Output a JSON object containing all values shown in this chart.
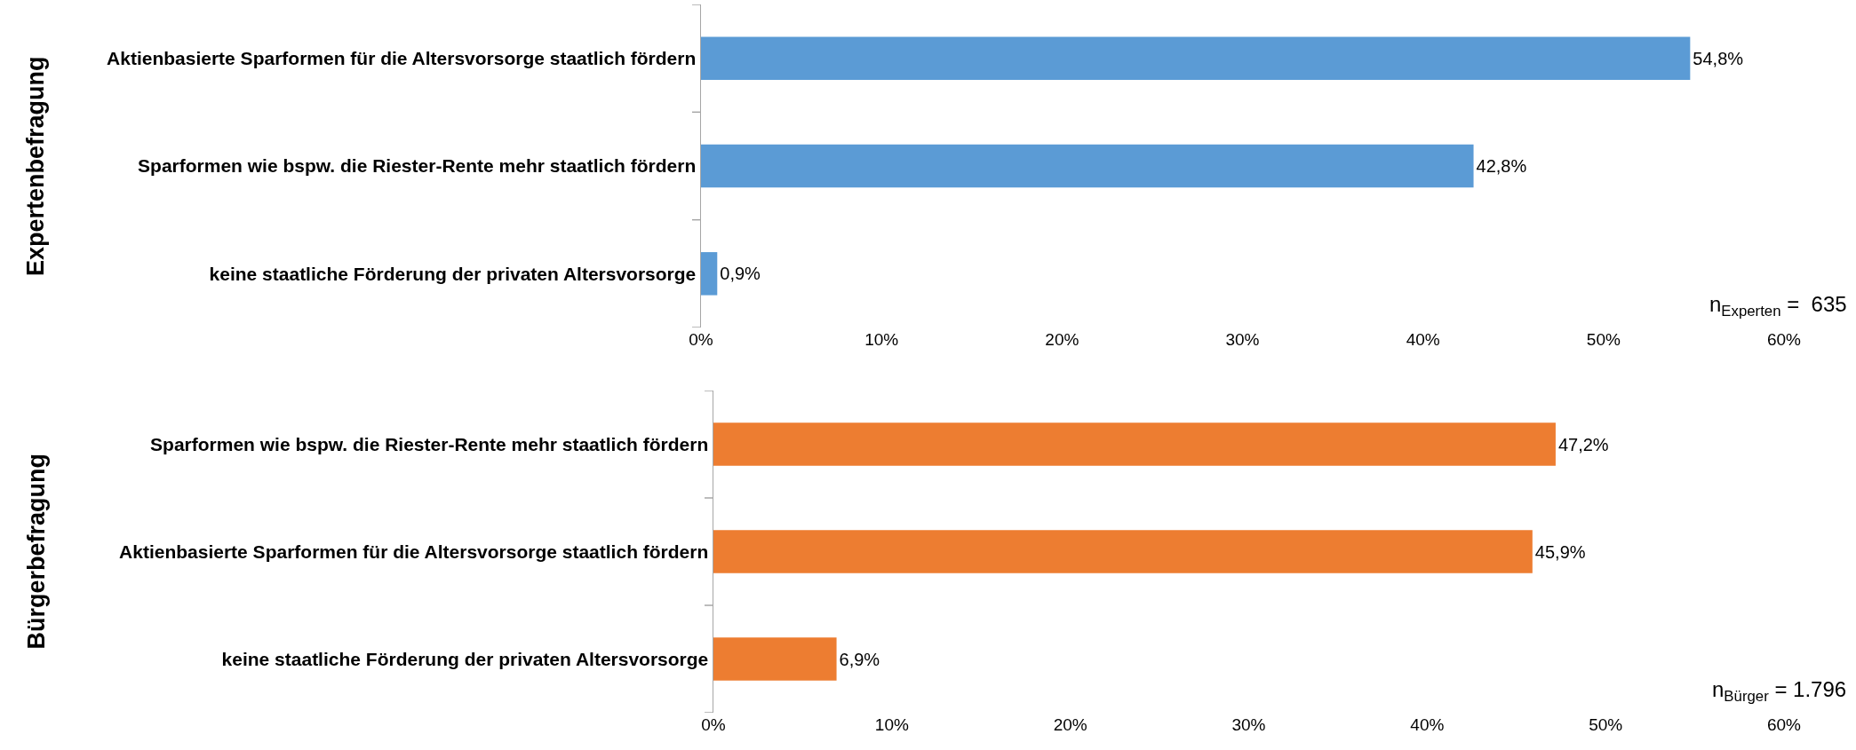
{
  "chart_data": [
    {
      "type": "bar",
      "orientation": "horizontal",
      "ylabel": "Expertenbefragung",
      "categories": [
        "Aktienbasierte Sparformen für die Altersvorsorge staatlich fördern",
        "Sparformen wie bspw. die Riester-Rente mehr staatlich fördern",
        "keine staatliche Förderung der privaten Altersvorsorge"
      ],
      "values": [
        54.8,
        42.8,
        0.9
      ],
      "value_labels": [
        "54,8%",
        "42,8%",
        "0,9%"
      ],
      "color": "#5b9bd5",
      "xlim": [
        0,
        60
      ],
      "xticks": [
        {
          "value": 0,
          "label": "0%"
        },
        {
          "value": 10,
          "label": "10%"
        },
        {
          "value": 20,
          "label": "20%"
        },
        {
          "value": 30,
          "label": "30%"
        },
        {
          "value": 40,
          "label": "40%"
        },
        {
          "value": 50,
          "label": "50%"
        },
        {
          "value": 60,
          "label": "60%"
        }
      ],
      "annotations": [
        "n$_{Experten}$ =  635"
      ],
      "grid": false,
      "legend": false
    },
    {
      "type": "bar",
      "orientation": "horizontal",
      "ylabel": "Bürgerbefragung",
      "categories": [
        "Sparformen wie bspw. die Riester-Rente mehr staatlich fördern",
        "Aktienbasierte Sparformen für die Altersvorsorge staatlich fördern",
        "keine staatliche Förderung der privaten Altersvorsorge"
      ],
      "values": [
        47.2,
        45.9,
        6.9
      ],
      "value_labels": [
        "47,2%",
        "45,9%",
        "6,9%"
      ],
      "color": "#ed7d31",
      "xlim": [
        0,
        60
      ],
      "xticks": [
        {
          "value": 0,
          "label": "0%"
        },
        {
          "value": 10,
          "label": "10%"
        },
        {
          "value": 20,
          "label": "20%"
        },
        {
          "value": 30,
          "label": "30%"
        },
        {
          "value": 40,
          "label": "40%"
        },
        {
          "value": 50,
          "label": "50%"
        },
        {
          "value": 60,
          "label": "60%"
        }
      ],
      "annotations": [
        "n$_{Bürger}$ = 1.796"
      ],
      "grid": false,
      "legend": false
    }
  ]
}
